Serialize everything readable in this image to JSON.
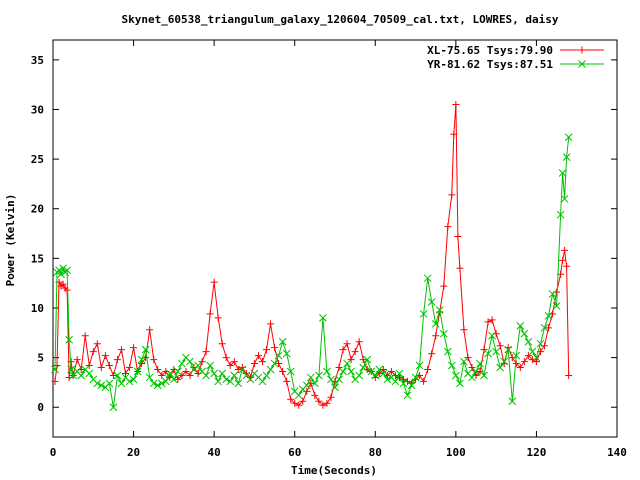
{
  "chart_data": {
    "type": "line",
    "title": "Skynet_60538_triangulum_galaxy_120604_70509_cal.txt, LOWRES, daisy",
    "xlabel": "Time(Seconds)",
    "ylabel": "Power (Kelvin)",
    "xlim": [
      0,
      140
    ],
    "ylim": [
      -3,
      37
    ],
    "xticks": [
      0,
      20,
      40,
      60,
      80,
      100,
      120,
      140
    ],
    "yticks": [
      0,
      5,
      10,
      15,
      20,
      25,
      30,
      35
    ],
    "grid": false,
    "legend_position": "top-right",
    "series": [
      {
        "name": "XL-75.65 Tsys:79.90",
        "color": "#ff0000",
        "marker": "plus",
        "points": [
          [
            0.5,
            2.6
          ],
          [
            1,
            4.2
          ],
          [
            1.5,
            12.6
          ],
          [
            2,
            12.2
          ],
          [
            2.5,
            12.4
          ],
          [
            3,
            12.0
          ],
          [
            3.5,
            11.8
          ],
          [
            4,
            3.0
          ],
          [
            4.5,
            4.6
          ],
          [
            5,
            3.2
          ],
          [
            6,
            4.8
          ],
          [
            7,
            3.8
          ],
          [
            8,
            7.2
          ],
          [
            9,
            4.2
          ],
          [
            10,
            5.6
          ],
          [
            11,
            6.4
          ],
          [
            12,
            4.0
          ],
          [
            13,
            5.2
          ],
          [
            14,
            4.2
          ],
          [
            15,
            3.2
          ],
          [
            16,
            4.8
          ],
          [
            17,
            5.8
          ],
          [
            18,
            3.4
          ],
          [
            19,
            4.0
          ],
          [
            20,
            6.0
          ],
          [
            21,
            3.6
          ],
          [
            22,
            4.4
          ],
          [
            23,
            5.0
          ],
          [
            24,
            7.8
          ],
          [
            25,
            4.8
          ],
          [
            26,
            3.8
          ],
          [
            27,
            3.2
          ],
          [
            28,
            3.6
          ],
          [
            29,
            3.0
          ],
          [
            30,
            3.8
          ],
          [
            31,
            2.8
          ],
          [
            32,
            3.2
          ],
          [
            33,
            3.6
          ],
          [
            34,
            3.2
          ],
          [
            35,
            4.0
          ],
          [
            36,
            3.4
          ],
          [
            37,
            4.6
          ],
          [
            38,
            5.6
          ],
          [
            39,
            9.4
          ],
          [
            40,
            12.6
          ],
          [
            41,
            9.0
          ],
          [
            42,
            6.4
          ],
          [
            43,
            5.0
          ],
          [
            44,
            4.2
          ],
          [
            45,
            4.6
          ],
          [
            46,
            3.8
          ],
          [
            47,
            4.0
          ],
          [
            48,
            3.4
          ],
          [
            49,
            3.0
          ],
          [
            50,
            4.4
          ],
          [
            51,
            5.2
          ],
          [
            52,
            4.6
          ],
          [
            53,
            5.8
          ],
          [
            54,
            8.4
          ],
          [
            55,
            6.0
          ],
          [
            56,
            4.4
          ],
          [
            57,
            3.6
          ],
          [
            58,
            2.6
          ],
          [
            59,
            0.8
          ],
          [
            60,
            0.4
          ],
          [
            61,
            0.2
          ],
          [
            62,
            0.6
          ],
          [
            63,
            1.6
          ],
          [
            64,
            2.4
          ],
          [
            65,
            1.2
          ],
          [
            66,
            0.6
          ],
          [
            67,
            0.2
          ],
          [
            68,
            0.4
          ],
          [
            69,
            1.0
          ],
          [
            70,
            2.6
          ],
          [
            71,
            4.0
          ],
          [
            72,
            5.8
          ],
          [
            73,
            6.4
          ],
          [
            74,
            4.8
          ],
          [
            75,
            5.6
          ],
          [
            76,
            6.6
          ],
          [
            77,
            4.8
          ],
          [
            78,
            3.8
          ],
          [
            79,
            3.6
          ],
          [
            80,
            3.0
          ],
          [
            81,
            3.4
          ],
          [
            82,
            3.8
          ],
          [
            83,
            3.2
          ],
          [
            84,
            3.6
          ],
          [
            85,
            3.2
          ],
          [
            86,
            3.0
          ],
          [
            87,
            2.8
          ],
          [
            88,
            2.6
          ],
          [
            89,
            2.4
          ],
          [
            90,
            2.8
          ],
          [
            91,
            3.2
          ],
          [
            92,
            2.6
          ],
          [
            93,
            3.8
          ],
          [
            94,
            5.4
          ],
          [
            95,
            7.2
          ],
          [
            96,
            9.6
          ],
          [
            97,
            12.2
          ],
          [
            98,
            18.2
          ],
          [
            99,
            21.4
          ],
          [
            99.5,
            27.5
          ],
          [
            100,
            30.5
          ],
          [
            100.5,
            17.2
          ],
          [
            101,
            14.0
          ],
          [
            102,
            7.8
          ],
          [
            103,
            5.0
          ],
          [
            104,
            4.0
          ],
          [
            105,
            3.2
          ],
          [
            106,
            3.6
          ],
          [
            107,
            5.8
          ],
          [
            108,
            8.6
          ],
          [
            109,
            8.8
          ],
          [
            110,
            7.4
          ],
          [
            111,
            6.2
          ],
          [
            112,
            4.4
          ],
          [
            113,
            6.0
          ],
          [
            114,
            5.0
          ],
          [
            115,
            4.4
          ],
          [
            116,
            4.0
          ],
          [
            117,
            4.6
          ],
          [
            118,
            5.2
          ],
          [
            119,
            4.8
          ],
          [
            120,
            4.6
          ],
          [
            121,
            5.6
          ],
          [
            122,
            6.2
          ],
          [
            123,
            8.0
          ],
          [
            124,
            9.4
          ],
          [
            125,
            11.6
          ],
          [
            126,
            13.4
          ],
          [
            126.5,
            14.8
          ],
          [
            127,
            15.8
          ],
          [
            127.5,
            14.2
          ],
          [
            128,
            3.2
          ]
        ]
      },
      {
        "name": "YR-81.62 Tsys:87.51",
        "color": "#00c000",
        "marker": "x",
        "points": [
          [
            0.5,
            3.8
          ],
          [
            1,
            13.6
          ],
          [
            1.5,
            13.8
          ],
          [
            2,
            13.4
          ],
          [
            2.5,
            14.0
          ],
          [
            3,
            13.6
          ],
          [
            3.5,
            13.8
          ],
          [
            4,
            6.8
          ],
          [
            4.5,
            3.8
          ],
          [
            5,
            3.2
          ],
          [
            6,
            3.6
          ],
          [
            7,
            3.2
          ],
          [
            8,
            3.8
          ],
          [
            9,
            3.4
          ],
          [
            10,
            2.8
          ],
          [
            11,
            2.4
          ],
          [
            12,
            2.2
          ],
          [
            13,
            2.0
          ],
          [
            14,
            2.4
          ],
          [
            15,
            0.0
          ],
          [
            16,
            3.2
          ],
          [
            17,
            2.4
          ],
          [
            18,
            3.0
          ],
          [
            19,
            2.6
          ],
          [
            20,
            2.8
          ],
          [
            21,
            3.6
          ],
          [
            22,
            4.8
          ],
          [
            23,
            5.8
          ],
          [
            24,
            3.0
          ],
          [
            25,
            2.4
          ],
          [
            26,
            2.2
          ],
          [
            27,
            2.4
          ],
          [
            28,
            2.6
          ],
          [
            29,
            3.4
          ],
          [
            30,
            2.8
          ],
          [
            31,
            3.6
          ],
          [
            32,
            4.4
          ],
          [
            33,
            5.0
          ],
          [
            34,
            4.6
          ],
          [
            35,
            3.8
          ],
          [
            36,
            4.2
          ],
          [
            37,
            3.6
          ],
          [
            38,
            3.2
          ],
          [
            39,
            4.2
          ],
          [
            40,
            3.4
          ],
          [
            41,
            2.6
          ],
          [
            42,
            3.4
          ],
          [
            43,
            2.8
          ],
          [
            44,
            2.6
          ],
          [
            45,
            3.2
          ],
          [
            46,
            2.4
          ],
          [
            47,
            3.8
          ],
          [
            48,
            3.2
          ],
          [
            49,
            2.8
          ],
          [
            50,
            3.4
          ],
          [
            51,
            3.0
          ],
          [
            52,
            2.6
          ],
          [
            53,
            3.2
          ],
          [
            54,
            3.8
          ],
          [
            55,
            4.4
          ],
          [
            56,
            5.2
          ],
          [
            57,
            6.6
          ],
          [
            58,
            5.4
          ],
          [
            59,
            3.6
          ],
          [
            60,
            1.6
          ],
          [
            61,
            1.2
          ],
          [
            62,
            1.8
          ],
          [
            63,
            2.2
          ],
          [
            64,
            3.0
          ],
          [
            65,
            2.4
          ],
          [
            66,
            3.2
          ],
          [
            67,
            9.0
          ],
          [
            68,
            3.6
          ],
          [
            69,
            2.8
          ],
          [
            70,
            2.0
          ],
          [
            71,
            2.8
          ],
          [
            72,
            3.6
          ],
          [
            73,
            4.4
          ],
          [
            74,
            3.6
          ],
          [
            75,
            2.8
          ],
          [
            76,
            3.2
          ],
          [
            77,
            4.0
          ],
          [
            78,
            4.8
          ],
          [
            79,
            3.6
          ],
          [
            80,
            3.2
          ],
          [
            81,
            3.8
          ],
          [
            82,
            3.4
          ],
          [
            83,
            2.8
          ],
          [
            84,
            3.0
          ],
          [
            85,
            2.6
          ],
          [
            86,
            3.4
          ],
          [
            87,
            2.4
          ],
          [
            88,
            1.2
          ],
          [
            89,
            2.2
          ],
          [
            90,
            3.0
          ],
          [
            91,
            4.2
          ],
          [
            92,
            9.4
          ],
          [
            93,
            13.0
          ],
          [
            94,
            10.6
          ],
          [
            95,
            8.4
          ],
          [
            96,
            9.8
          ],
          [
            97,
            7.4
          ],
          [
            98,
            5.6
          ],
          [
            99,
            4.2
          ],
          [
            100,
            3.2
          ],
          [
            101,
            2.4
          ],
          [
            102,
            4.6
          ],
          [
            103,
            3.4
          ],
          [
            104,
            3.0
          ],
          [
            105,
            3.6
          ],
          [
            106,
            4.4
          ],
          [
            107,
            3.2
          ],
          [
            108,
            5.4
          ],
          [
            109,
            7.2
          ],
          [
            110,
            5.6
          ],
          [
            111,
            4.0
          ],
          [
            112,
            4.6
          ],
          [
            113,
            5.8
          ],
          [
            114,
            0.6
          ],
          [
            115,
            5.2
          ],
          [
            116,
            8.2
          ],
          [
            117,
            7.4
          ],
          [
            118,
            6.6
          ],
          [
            119,
            5.6
          ],
          [
            120,
            5.0
          ],
          [
            121,
            6.4
          ],
          [
            122,
            8.0
          ],
          [
            123,
            9.2
          ],
          [
            124,
            11.4
          ],
          [
            125,
            10.2
          ],
          [
            126,
            19.4
          ],
          [
            126.5,
            23.6
          ],
          [
            127,
            21.0
          ],
          [
            127.5,
            25.2
          ],
          [
            128,
            27.2
          ]
        ]
      }
    ]
  }
}
